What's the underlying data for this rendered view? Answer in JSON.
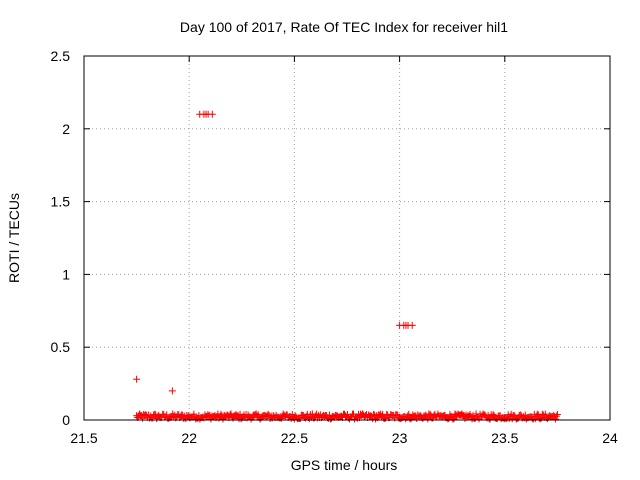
{
  "chart_data": {
    "type": "scatter",
    "title": "Day 100 of 2017, Rate Of TEC Index for receiver hil1",
    "xlabel": "GPS time / hours",
    "ylabel": "ROTI / TECUs",
    "xlim": [
      21.5,
      24
    ],
    "ylim": [
      0,
      2.5
    ],
    "x_ticks": [
      "21.5",
      "22",
      "22.5",
      "23",
      "23.5",
      "24"
    ],
    "y_ticks": [
      "0",
      "0.5",
      "1",
      "1.5",
      "2",
      "2.5"
    ],
    "grid": true,
    "legend": "none",
    "marker": "plus",
    "colors": {
      "series": "#ff0000",
      "axis": "#000000",
      "grid": "#a0a0a0"
    },
    "series": [
      {
        "points": [
          {
            "x": 21.75,
            "y": 0.28
          },
          {
            "x": 21.92,
            "y": 0.2
          },
          {
            "x": 22.05,
            "y": 2.1
          },
          {
            "x": 22.07,
            "y": 2.1
          },
          {
            "x": 22.08,
            "y": 2.1
          },
          {
            "x": 22.09,
            "y": 2.1
          },
          {
            "x": 22.11,
            "y": 2.1
          },
          {
            "x": 23.0,
            "y": 0.65
          },
          {
            "x": 23.02,
            "y": 0.65
          },
          {
            "x": 23.03,
            "y": 0.65
          },
          {
            "x": 23.04,
            "y": 0.65
          },
          {
            "x": 23.06,
            "y": 0.65
          }
        ],
        "baseline": {
          "x_start": 21.75,
          "x_end": 23.75,
          "y_min": 0.0,
          "y_max": 0.06,
          "description": "dense band of low ROTI values across the whole interval"
        }
      }
    ]
  }
}
